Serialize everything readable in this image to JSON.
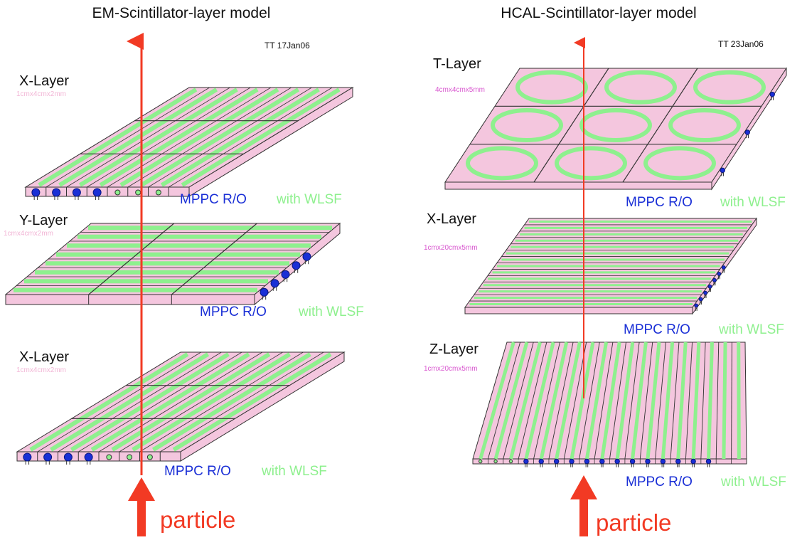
{
  "colors": {
    "pink": "#f4c6de",
    "green": "#8ef08e",
    "blue": "#1a2fd6",
    "red": "#f23a24",
    "dimpink": "#f2b6d6",
    "magenta": "#d95ad0",
    "outline": "#333333"
  },
  "em": {
    "title": "EM-Scintillator-layer model",
    "date": "TT 17Jan06",
    "layers": [
      {
        "name": "X-Layer",
        "size": "1cmx4cmx2mm",
        "mppc": "MPPC R/O",
        "wlsf": "with WLSF"
      },
      {
        "name": "Y-Layer",
        "size": "1cmx4cmx2mm",
        "mppc": "MPPC R/O",
        "wlsf": "with WLSF"
      },
      {
        "name": "X-Layer",
        "size": "1cmx4cmx2mm",
        "mppc": "MPPC R/O",
        "wlsf": "with WLSF"
      }
    ],
    "particle": "particle"
  },
  "hcal": {
    "title": "HCAL-Scintillator-layer model",
    "date": "TT 23Jan06",
    "layers": [
      {
        "name": "T-Layer",
        "size": "4cmx4cmx5mm",
        "mppc": "MPPC R/O",
        "wlsf": "with WLSF"
      },
      {
        "name": "X-Layer",
        "size": "1cmx20cmx5mm",
        "mppc": "MPPC R/O",
        "wlsf": "with WLSF"
      },
      {
        "name": "Z-Layer",
        "size": "1cmx20cmx5mm",
        "mppc": "MPPC R/O",
        "wlsf": "with WLSF"
      }
    ],
    "particle": "particle"
  },
  "icons": {
    "readout": "mppc-sensor-icon",
    "fiber": "wls-fiber-icon",
    "arrow": "particle-direction-arrow-icon"
  }
}
